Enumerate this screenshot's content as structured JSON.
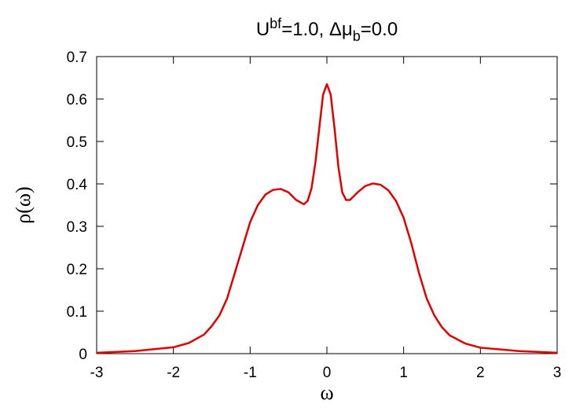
{
  "chart_data": {
    "type": "line",
    "title_parts": [
      {
        "text": "U",
        "script": "none"
      },
      {
        "text": "bf",
        "script": "super"
      },
      {
        "text": "=1.0, Δμ",
        "script": "none"
      },
      {
        "text": "b",
        "script": "sub"
      },
      {
        "text": "=0.0",
        "script": "none"
      }
    ],
    "x_label": "ω",
    "y_label": "ρ(ω)",
    "xlim": [
      -3,
      3
    ],
    "ylim": [
      0,
      0.7
    ],
    "xticks": [
      -3,
      -2,
      -1,
      0,
      1,
      2,
      3
    ],
    "yticks": [
      0,
      0.1,
      0.2,
      0.3,
      0.4,
      0.5,
      0.6,
      0.7
    ],
    "grid": false,
    "x": [
      -3,
      -2.5,
      -2,
      -1.8,
      -1.6,
      -1.5,
      -1.4,
      -1.3,
      -1.2,
      -1.1,
      -1.0,
      -0.9,
      -0.8,
      -0.7,
      -0.6,
      -0.5,
      -0.4,
      -0.3,
      -0.25,
      -0.2,
      -0.15,
      -0.1,
      -0.05,
      0,
      0.05,
      0.1,
      0.15,
      0.2,
      0.25,
      0.3,
      0.4,
      0.5,
      0.6,
      0.7,
      0.8,
      0.9,
      1.0,
      1.1,
      1.2,
      1.3,
      1.4,
      1.5,
      1.6,
      1.8,
      2.0,
      2.5,
      3.0
    ],
    "series": [
      {
        "color": "#e00000",
        "values": [
          0.002,
          0.006,
          0.015,
          0.025,
          0.045,
          0.065,
          0.09,
          0.13,
          0.19,
          0.25,
          0.31,
          0.35,
          0.375,
          0.386,
          0.388,
          0.38,
          0.362,
          0.352,
          0.36,
          0.39,
          0.45,
          0.53,
          0.61,
          0.635,
          0.61,
          0.53,
          0.44,
          0.38,
          0.362,
          0.362,
          0.38,
          0.395,
          0.401,
          0.398,
          0.385,
          0.36,
          0.32,
          0.26,
          0.19,
          0.13,
          0.09,
          0.062,
          0.043,
          0.024,
          0.014,
          0.006,
          0.002
        ]
      }
    ]
  }
}
